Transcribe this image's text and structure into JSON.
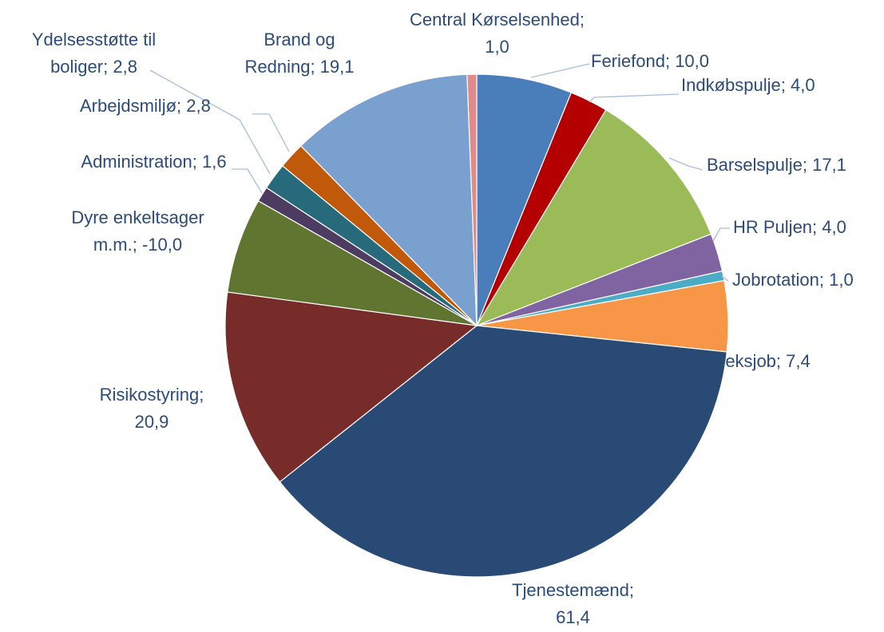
{
  "chart_data": {
    "type": "pie",
    "categories": [
      "Feriefond",
      "Indkøbspulje",
      "Barselspulje",
      "HR Puljen",
      "Jobrotation",
      "Fleksjob",
      "Tjenestemænd",
      "Risikostyring",
      "Dyre enkeltsager m.m.",
      "Administration",
      "Arbejdsmiljø",
      "Ydelsesstøtte til boliger",
      "Brand og Redning",
      "Central Kørselsenhed"
    ],
    "values": [
      10.0,
      4.0,
      17.1,
      4.0,
      1.0,
      7.4,
      61.4,
      20.9,
      -10.0,
      1.6,
      2.8,
      2.8,
      19.1,
      1.0
    ],
    "value_labels": [
      "10,0",
      "4,0",
      "17,1",
      "4,0",
      "1,0",
      "7,4",
      "61,4",
      "20,9",
      "-10,0",
      "1,6",
      "2,8",
      "2,8",
      "19,1",
      "1,0"
    ],
    "label_separator": "; ",
    "colors": [
      "#4a7ebb",
      "#b40000",
      "#9bbb59",
      "#8064a2",
      "#4bacc6",
      "#f79646",
      "#2a4a76",
      "#772c2a",
      "#5f7530",
      "#4d3b62",
      "#276a7c",
      "#c0590a",
      "#7aa0cf",
      "#e08a8a"
    ]
  }
}
